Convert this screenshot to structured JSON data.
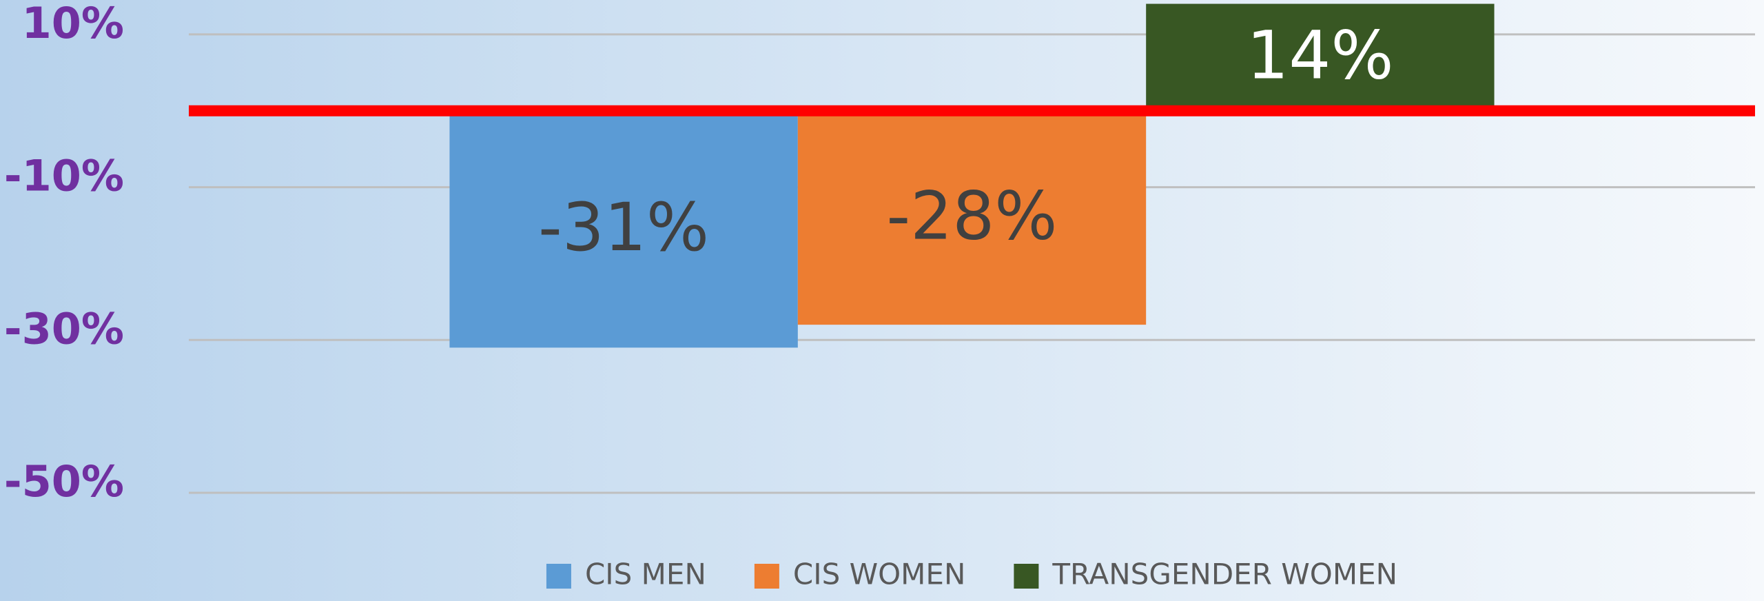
{
  "chart_data": {
    "type": "bar",
    "categories": [
      null
    ],
    "series": [
      {
        "name": "CIS MEN",
        "color": "#5b9bd5",
        "values": [
          -31
        ],
        "value_labels": [
          "-31%"
        ]
      },
      {
        "name": "CIS WOMEN",
        "color": "#ed7d31",
        "values": [
          -28
        ],
        "value_labels": [
          "-28%"
        ]
      },
      {
        "name": "TRANSGENDER WOMEN",
        "color": "#385723",
        "values": [
          14
        ],
        "value_labels": [
          "14%"
        ]
      }
    ],
    "ylim": [
      -50,
      14.5
    ],
    "yticks": [
      {
        "value": 10,
        "label": "10%"
      },
      {
        "value": -10,
        "label": "-10%"
      },
      {
        "value": -30,
        "label": "-30%"
      },
      {
        "value": -50,
        "label": "-50%"
      }
    ],
    "grid": true,
    "legend": "bottom"
  }
}
